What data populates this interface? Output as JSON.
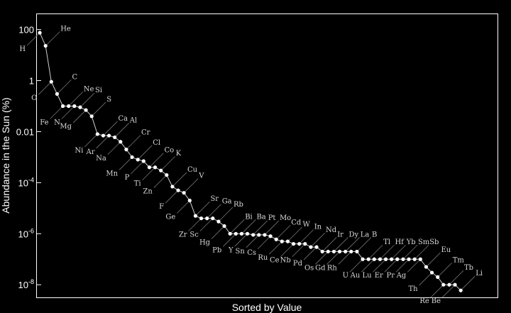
{
  "chart_data": {
    "type": "scatter",
    "title": "",
    "xlabel": "Sorted by Value",
    "ylabel": "Abundance in the Sun (%)",
    "yscale": "log",
    "ylim": [
      3e-09,
      400
    ],
    "xlim": [
      0.5,
      80.5
    ],
    "yticks": [
      {
        "value": 100,
        "label": "100"
      },
      {
        "value": 1,
        "label": "1"
      },
      {
        "value": 0.01,
        "label": "0.01"
      },
      {
        "value": 0.0001,
        "label": "10^-4"
      },
      {
        "value": 1e-06,
        "label": "10^-6"
      },
      {
        "value": 1e-08,
        "label": "10^-8"
      }
    ],
    "points": [
      {
        "label": "H",
        "value": 75,
        "side": "below"
      },
      {
        "label": "He",
        "value": 23,
        "side": "above"
      },
      {
        "label": "O",
        "value": 0.9,
        "side": "below"
      },
      {
        "label": "C",
        "value": 0.3,
        "side": "above"
      },
      {
        "label": "Fe",
        "value": 0.1,
        "side": "below"
      },
      {
        "label": "Ne",
        "value": 0.1,
        "side": "above"
      },
      {
        "label": "N",
        "value": 0.1,
        "side": "below"
      },
      {
        "label": "Si",
        "value": 0.09,
        "side": "above"
      },
      {
        "label": "Mg",
        "value": 0.07,
        "side": "below"
      },
      {
        "label": "S",
        "value": 0.04,
        "side": "above"
      },
      {
        "label": "Ni",
        "value": 0.008,
        "side": "below"
      },
      {
        "label": "Ca",
        "value": 0.007,
        "side": "above"
      },
      {
        "label": "Ar",
        "value": 0.007,
        "side": "below"
      },
      {
        "label": "Al",
        "value": 0.006,
        "side": "above"
      },
      {
        "label": "Na",
        "value": 0.004,
        "side": "below"
      },
      {
        "label": "Cr",
        "value": 0.002,
        "side": "above"
      },
      {
        "label": "Mn",
        "value": 0.001,
        "side": "below"
      },
      {
        "label": "Cl",
        "value": 0.0008,
        "side": "above"
      },
      {
        "label": "P",
        "value": 0.0007,
        "side": "below"
      },
      {
        "label": "Co",
        "value": 0.0004,
        "side": "above"
      },
      {
        "label": "Ti",
        "value": 0.0004,
        "side": "below"
      },
      {
        "label": "K",
        "value": 0.0003,
        "side": "above"
      },
      {
        "label": "Zn",
        "value": 0.0002,
        "side": "below"
      },
      {
        "label": "Cu",
        "value": 7e-05,
        "side": "above"
      },
      {
        "label": "F",
        "value": 5e-05,
        "side": "below"
      },
      {
        "label": "V",
        "value": 4e-05,
        "side": "above"
      },
      {
        "label": "Ge",
        "value": 2e-05,
        "side": "below"
      },
      {
        "label": "Sr",
        "value": 5e-06,
        "side": "above"
      },
      {
        "label": "Zr",
        "value": 4e-06,
        "side": "below"
      },
      {
        "label": "Ga",
        "value": 4e-06,
        "side": "above"
      },
      {
        "label": "Sc",
        "value": 4e-06,
        "side": "below"
      },
      {
        "label": "Rb",
        "value": 3e-06,
        "side": "above"
      },
      {
        "label": "Hg",
        "value": 2e-06,
        "side": "below"
      },
      {
        "label": "Bi",
        "value": 1e-06,
        "side": "above"
      },
      {
        "label": "Pb",
        "value": 1e-06,
        "side": "below"
      },
      {
        "label": "Ba",
        "value": 1e-06,
        "side": "above"
      },
      {
        "label": "Y",
        "value": 1e-06,
        "side": "below"
      },
      {
        "label": "Pt",
        "value": 9e-07,
        "side": "above"
      },
      {
        "label": "Sn",
        "value": 9e-07,
        "side": "below"
      },
      {
        "label": "Mo",
        "value": 9e-07,
        "side": "above"
      },
      {
        "label": "Cs",
        "value": 8e-07,
        "side": "below"
      },
      {
        "label": "Cd",
        "value": 6e-07,
        "side": "above"
      },
      {
        "label": "Ru",
        "value": 5e-07,
        "side": "below"
      },
      {
        "label": "W",
        "value": 5e-07,
        "side": "above"
      },
      {
        "label": "Ce",
        "value": 4e-07,
        "side": "below"
      },
      {
        "label": "In",
        "value": 4e-07,
        "side": "above"
      },
      {
        "label": "Nb",
        "value": 4e-07,
        "side": "below"
      },
      {
        "label": "Nd",
        "value": 3e-07,
        "side": "above"
      },
      {
        "label": "Pd",
        "value": 3e-07,
        "side": "below"
      },
      {
        "label": "Ir",
        "value": 2e-07,
        "side": "above"
      },
      {
        "label": "Os",
        "value": 2e-07,
        "side": "below"
      },
      {
        "label": "Dy",
        "value": 2e-07,
        "side": "above"
      },
      {
        "label": "Gd",
        "value": 2e-07,
        "side": "below"
      },
      {
        "label": "La",
        "value": 2e-07,
        "side": "above"
      },
      {
        "label": "Rh",
        "value": 2e-07,
        "side": "below"
      },
      {
        "label": "B",
        "value": 2e-07,
        "side": "above"
      },
      {
        "label": "U",
        "value": 1e-07,
        "side": "below"
      },
      {
        "label": "Tl",
        "value": 1e-07,
        "side": "above"
      },
      {
        "label": "Au",
        "value": 1e-07,
        "side": "below"
      },
      {
        "label": "Hf",
        "value": 1e-07,
        "side": "above"
      },
      {
        "label": "Lu",
        "value": 1e-07,
        "side": "below"
      },
      {
        "label": "Yb",
        "value": 1e-07,
        "side": "above"
      },
      {
        "label": "Er",
        "value": 1e-07,
        "side": "below"
      },
      {
        "label": "Sm",
        "value": 1e-07,
        "side": "above"
      },
      {
        "label": "Pr",
        "value": 1e-07,
        "side": "below"
      },
      {
        "label": "Sb",
        "value": 1e-07,
        "side": "above"
      },
      {
        "label": "Ag",
        "value": 1e-07,
        "side": "below"
      },
      {
        "label": "Eu",
        "value": 5e-08,
        "side": "above"
      },
      {
        "label": "Th",
        "value": 3e-08,
        "side": "below"
      },
      {
        "label": "Tm",
        "value": 2e-08,
        "side": "above"
      },
      {
        "label": "Re",
        "value": 1e-08,
        "side": "below"
      },
      {
        "label": "Tb",
        "value": 1e-08,
        "side": "above"
      },
      {
        "label": "Be",
        "value": 1e-08,
        "side": "below"
      },
      {
        "label": "Li",
        "value": 6e-09,
        "side": "above"
      }
    ],
    "grid": false,
    "legend": "none",
    "colors": {
      "background": "#000000",
      "points": "#ffffff",
      "line": "#cfcfcf",
      "labels": "#d8d8d8",
      "leaders": "#777777"
    }
  }
}
